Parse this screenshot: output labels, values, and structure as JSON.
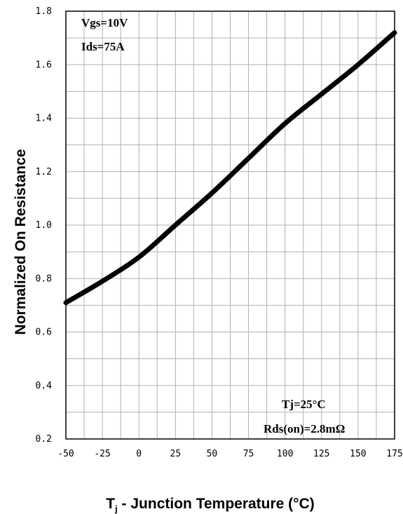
{
  "chart_data": {
    "type": "line",
    "xlabel": "T",
    "xlabel_sub": "j",
    "xlabel_rest": " - Junction Temperature (°C)",
    "ylabel": "Normalized On Resistance",
    "xlim": [
      -50,
      175
    ],
    "ylim": [
      0.2,
      1.8
    ],
    "x_ticks": [
      -50,
      -25,
      0,
      25,
      50,
      75,
      100,
      125,
      150,
      175
    ],
    "y_ticks": [
      "0.2",
      "0.4",
      "0.6",
      "0.8",
      "1.0",
      "1.2",
      "1.4",
      "1.6",
      "1.8"
    ],
    "grid": true,
    "annotations": {
      "top_left": [
        "Vgs=10V",
        "Ids=75A"
      ],
      "bottom_right": [
        "Tj=25°C",
        "Rds(on)=2.8mΩ"
      ]
    },
    "series": [
      {
        "x": [
          -50,
          -25,
          0,
          25,
          50,
          75,
          100,
          125,
          150,
          175
        ],
        "y": [
          0.71,
          0.79,
          0.88,
          1.0,
          1.12,
          1.25,
          1.38,
          1.49,
          1.6,
          1.72
        ]
      }
    ]
  }
}
